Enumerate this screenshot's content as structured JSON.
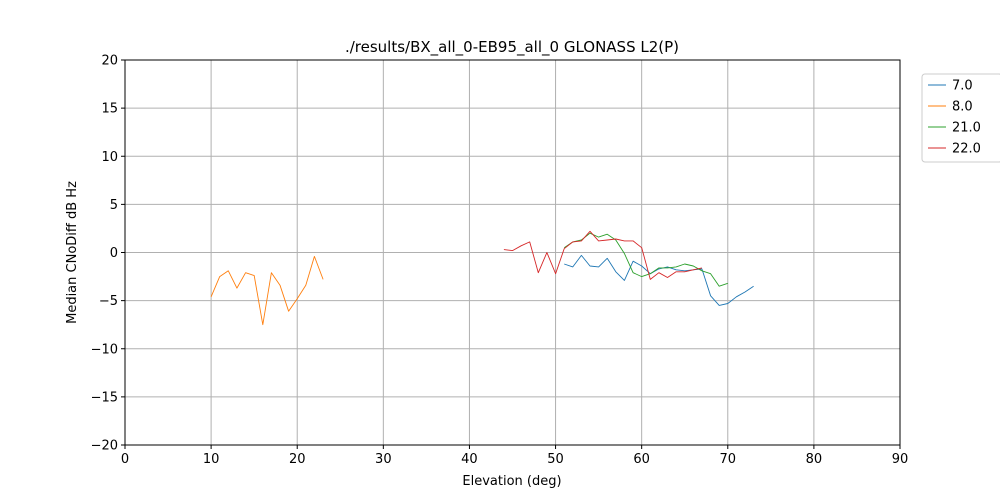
{
  "chart_data": {
    "type": "line",
    "title": "./results/BX_all_0-EB95_all_0 GLONASS L2(P)",
    "xlabel": "Elevation (deg)",
    "ylabel": "Median CNoDiff dB Hz",
    "xlim": [
      0,
      90
    ],
    "ylim": [
      -20,
      20
    ],
    "xticks": [
      0,
      10,
      20,
      30,
      40,
      50,
      60,
      70,
      80,
      90
    ],
    "yticks": [
      -20,
      -15,
      -10,
      -5,
      0,
      5,
      10,
      15,
      20
    ],
    "grid": true,
    "legend_position": "outside-top-right",
    "series": [
      {
        "name": "7.0",
        "color": "#1f77b4",
        "x": [
          51,
          52,
          53,
          54,
          55,
          56,
          57,
          58,
          59,
          60,
          61,
          62,
          63,
          64,
          65,
          66,
          67,
          68,
          69,
          70,
          71,
          72,
          73
        ],
        "y": [
          -1.2,
          -1.5,
          -0.3,
          -1.4,
          -1.5,
          -0.6,
          -2.0,
          -2.9,
          -0.9,
          -1.4,
          -2.2,
          -1.7,
          -1.5,
          -1.8,
          -1.9,
          -1.8,
          -1.7,
          -4.5,
          -5.5,
          -5.3,
          -4.6,
          -4.1,
          -3.5
        ]
      },
      {
        "name": "8.0",
        "color": "#ff7f0e",
        "x": [
          10,
          11,
          12,
          13,
          14,
          15,
          16,
          17,
          18,
          19,
          20,
          21,
          22,
          23
        ],
        "y": [
          -4.6,
          -2.5,
          -1.9,
          -3.7,
          -2.1,
          -2.4,
          -7.5,
          -2.1,
          -3.4,
          -6.1,
          -4.8,
          -3.4,
          -0.4,
          -2.8
        ]
      },
      {
        "name": "21.0",
        "color": "#2ca02c",
        "x": [
          51,
          52,
          53,
          54,
          55,
          56,
          57,
          58,
          59,
          60,
          61,
          62,
          63,
          64,
          65,
          66,
          67,
          68,
          69,
          70
        ],
        "y": [
          0.5,
          1.1,
          1.3,
          2.0,
          1.6,
          1.9,
          1.3,
          -0.1,
          -2.1,
          -2.5,
          -2.2,
          -1.6,
          -1.6,
          -1.5,
          -1.2,
          -1.4,
          -1.9,
          -2.2,
          -3.5,
          -3.2
        ]
      },
      {
        "name": "22.0",
        "color": "#d62728",
        "x": [
          44,
          45,
          46,
          47,
          48,
          49,
          50,
          51,
          52,
          53,
          54,
          55,
          56,
          57,
          58,
          59,
          60,
          61,
          62,
          63,
          64,
          65,
          66,
          67
        ],
        "y": [
          0.3,
          0.2,
          0.7,
          1.1,
          -2.1,
          0.0,
          -2.2,
          0.4,
          1.1,
          1.2,
          2.2,
          1.2,
          1.3,
          1.4,
          1.2,
          1.2,
          0.5,
          -2.8,
          -2.1,
          -2.6,
          -2.0,
          -2.0,
          -1.8,
          -1.6
        ]
      }
    ]
  }
}
